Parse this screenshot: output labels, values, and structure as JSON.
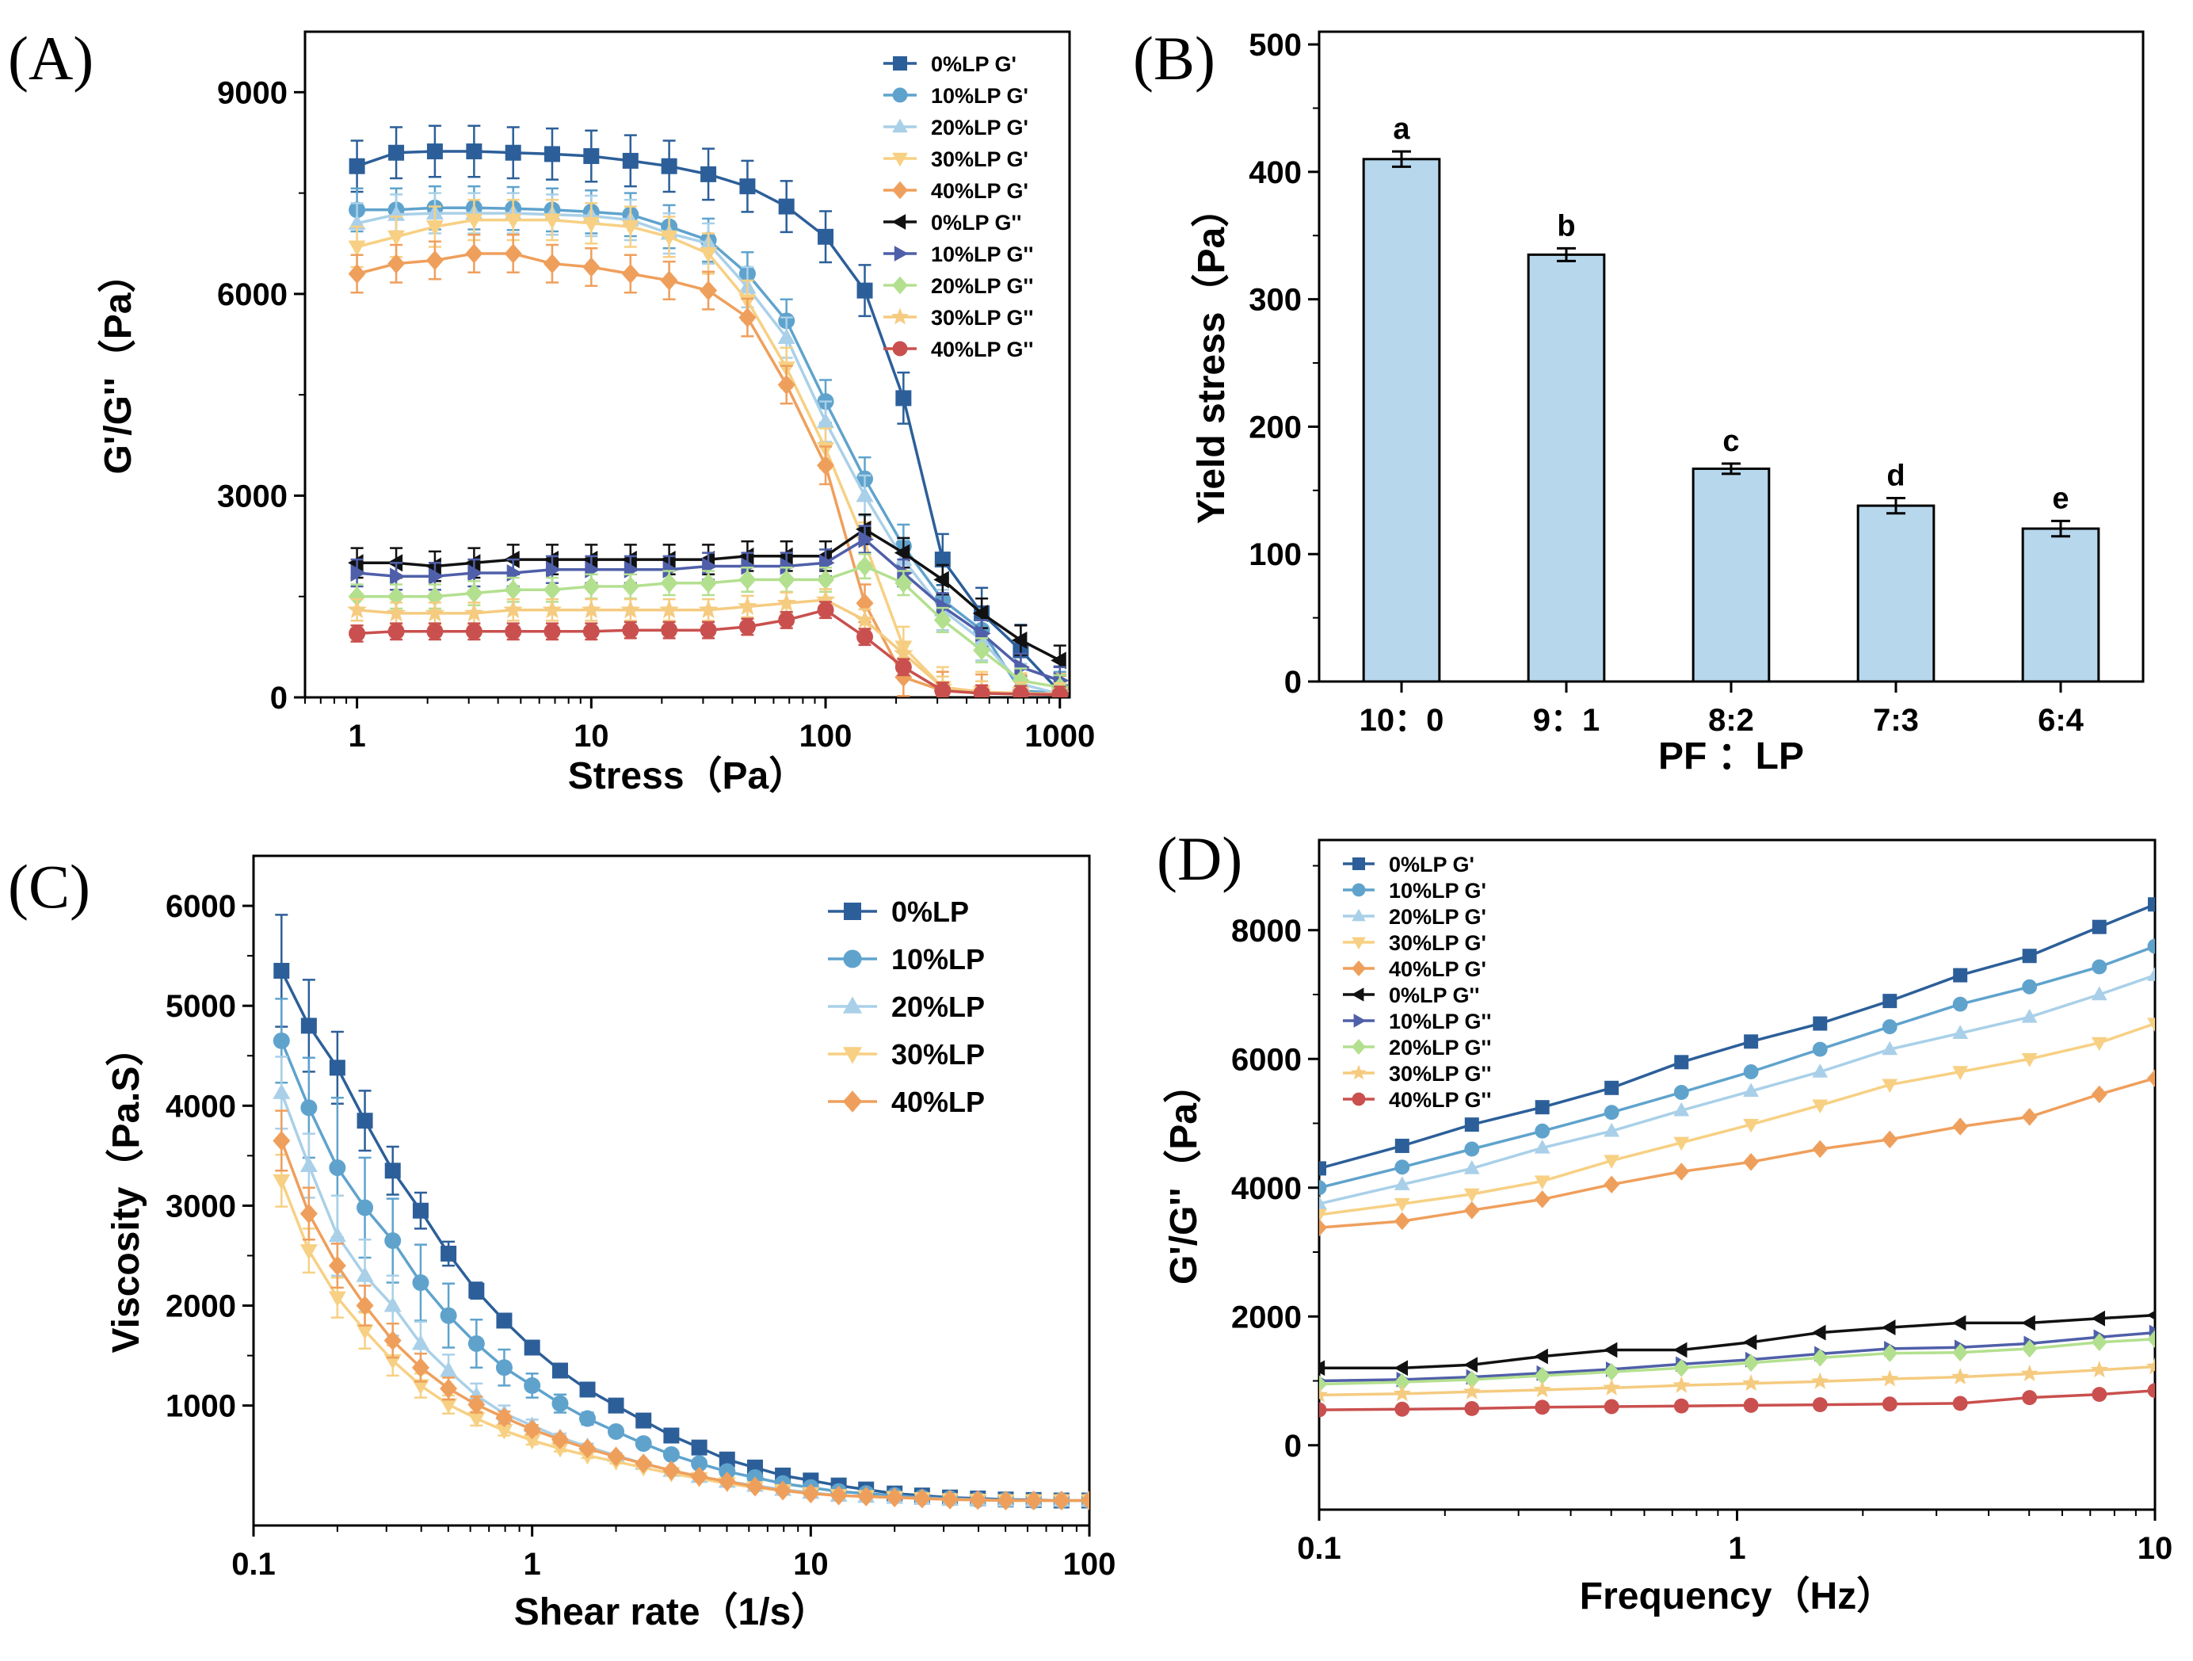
{
  "colors": {
    "p0": "#2C5F99",
    "p10": "#5FA3CD",
    "p20": "#A9D0E8",
    "p30": "#F7D083",
    "p40": "#EF9F5C",
    "g0": "#111111",
    "g10": "#4F5FA9",
    "g20": "#B3E08F",
    "g30": "#F5CB80",
    "g40": "#C9504E",
    "bar": "#B6D7EC"
  },
  "chart_data": [
    {
      "id": "A",
      "type": "line",
      "panel_label": "(A)",
      "xlabel": "Stress（Pa）",
      "ylabel": "G'/G''（Pa）",
      "xscale": "log",
      "xlim": [
        0.6,
        1100
      ],
      "ylim": [
        0,
        9900
      ],
      "xticks": [
        1,
        10,
        100,
        1000
      ],
      "xtick_labels": [
        "1",
        "10",
        "100",
        "1000"
      ],
      "yticks": [
        0,
        3000,
        6000,
        9000
      ],
      "ytick_labels": [
        "0",
        "3000",
        "6000",
        "9000"
      ],
      "x": [
        1,
        1.47,
        2.15,
        3.16,
        4.64,
        6.81,
        10,
        14.7,
        21.5,
        31.6,
        46.4,
        68.1,
        100,
        147,
        215,
        316,
        464,
        681,
        1000
      ],
      "series": [
        {
          "name": "0%LP G'",
          "color_key": "p0",
          "marker": "square",
          "err": 380,
          "values": [
            7900,
            8100,
            8120,
            8120,
            8100,
            8080,
            8050,
            7980,
            7900,
            7780,
            7600,
            7300,
            6850,
            6050,
            4450,
            2050,
            1250,
            700,
            80
          ]
        },
        {
          "name": "10%LP G'",
          "color_key": "p10",
          "marker": "circle",
          "err": 320,
          "values": [
            7250,
            7250,
            7280,
            7280,
            7270,
            7250,
            7220,
            7180,
            7000,
            6800,
            6300,
            5600,
            4400,
            3250,
            2250,
            1450,
            1000,
            100,
            60
          ]
        },
        {
          "name": "20%LP G'",
          "color_key": "p20",
          "marker": "triangle-up",
          "err": 300,
          "values": [
            7050,
            7180,
            7200,
            7200,
            7200,
            7180,
            7160,
            7100,
            6900,
            6750,
            6100,
            5350,
            4100,
            3000,
            2050,
            1300,
            850,
            200,
            50
          ]
        },
        {
          "name": "30%LP G'",
          "color_key": "p30",
          "marker": "triangle-down",
          "err": 300,
          "values": [
            6700,
            6850,
            7000,
            7100,
            7100,
            7100,
            7050,
            7000,
            6850,
            6600,
            5900,
            4900,
            3700,
            2300,
            750,
            150,
            80,
            60,
            50
          ]
        },
        {
          "name": "40%LP G'",
          "color_key": "p40",
          "marker": "diamond",
          "err": 280,
          "values": [
            6300,
            6450,
            6500,
            6600,
            6600,
            6450,
            6400,
            6300,
            6200,
            6050,
            5650,
            4650,
            3450,
            1400,
            300,
            100,
            60,
            50,
            40
          ]
        },
        {
          "name": "0%LP G''",
          "color_key": "g0",
          "marker": "triangle-left",
          "err": 220,
          "values": [
            2000,
            2000,
            1950,
            2000,
            2050,
            2050,
            2050,
            2050,
            2050,
            2050,
            2100,
            2100,
            2100,
            2500,
            2150,
            1750,
            1250,
            850,
            550
          ]
        },
        {
          "name": "10%LP G''",
          "color_key": "g10",
          "marker": "triangle-right",
          "err": 200,
          "values": [
            1850,
            1800,
            1800,
            1850,
            1850,
            1900,
            1900,
            1900,
            1900,
            1950,
            1950,
            1950,
            2000,
            2350,
            1850,
            1350,
            950,
            450,
            250
          ]
        },
        {
          "name": "20%LP G''",
          "color_key": "g20",
          "marker": "diamond",
          "err": 180,
          "values": [
            1500,
            1500,
            1500,
            1550,
            1600,
            1600,
            1650,
            1650,
            1700,
            1700,
            1750,
            1750,
            1750,
            1950,
            1700,
            1150,
            700,
            250,
            150
          ]
        },
        {
          "name": "30%LP G''",
          "color_key": "g30",
          "marker": "star",
          "err": 160,
          "values": [
            1300,
            1250,
            1250,
            1250,
            1300,
            1300,
            1300,
            1300,
            1300,
            1300,
            1350,
            1400,
            1450,
            1150,
            650,
            150,
            80,
            60,
            50
          ]
        },
        {
          "name": "40%LP G''",
          "color_key": "g40",
          "marker": "circle",
          "err": 120,
          "values": [
            950,
            980,
            980,
            980,
            980,
            980,
            980,
            1000,
            1000,
            1000,
            1050,
            1150,
            1300,
            900,
            450,
            100,
            60,
            50,
            40
          ]
        }
      ]
    },
    {
      "id": "B",
      "type": "bar",
      "panel_label": "(B)",
      "xlabel": "PF ：LP",
      "ylabel": "Yield stress（Pa）",
      "ylim": [
        0,
        510
      ],
      "yticks": [
        0,
        100,
        200,
        300,
        400,
        500
      ],
      "ytick_labels": [
        "0",
        "100",
        "200",
        "300",
        "400",
        "500"
      ],
      "categories": [
        "10：0",
        "9：1",
        "8:2",
        "7:3",
        "6:4"
      ],
      "values": [
        410,
        335,
        167,
        138,
        120
      ],
      "errors": [
        6,
        5,
        4,
        6,
        6
      ],
      "letters": [
        "a",
        "b",
        "c",
        "d",
        "e"
      ]
    },
    {
      "id": "C",
      "type": "line",
      "panel_label": "(C)",
      "xlabel": "Shear rate（1/s）",
      "ylabel": "Viscosity（Pa.S）",
      "xscale": "log",
      "xlim": [
        0.1,
        100
      ],
      "ylim": [
        -200,
        6500
      ],
      "xticks": [
        0.1,
        1,
        10,
        100
      ],
      "xtick_labels": [
        "0.1",
        "1",
        "10",
        "100"
      ],
      "yticks": [
        1000,
        2000,
        3000,
        4000,
        5000,
        6000
      ],
      "ytick_labels": [
        "1000",
        "2000",
        "3000",
        "4000",
        "5000",
        "6000"
      ],
      "x": [
        0.126,
        0.158,
        0.2,
        0.251,
        0.316,
        0.398,
        0.501,
        0.631,
        0.794,
        1.0,
        1.26,
        1.58,
        2.0,
        2.51,
        3.16,
        3.98,
        5.01,
        6.31,
        7.94,
        10,
        12.6,
        15.8,
        20,
        25.1,
        31.6,
        39.8,
        50.1,
        63.1,
        79.4,
        100
      ],
      "series": [
        {
          "name": "0%LP",
          "color_key": "p0",
          "marker": "square",
          "values": [
            5350,
            4800,
            4380,
            3850,
            3350,
            2950,
            2520,
            2150,
            1850,
            1580,
            1350,
            1160,
            1000,
            850,
            700,
            580,
            460,
            380,
            300,
            250,
            200,
            160,
            120,
            100,
            80,
            70,
            60,
            55,
            50,
            50
          ],
          "errors": [
            560,
            460,
            360,
            300,
            240,
            180,
            120,
            80,
            60,
            40,
            30,
            25,
            20,
            15,
            15,
            10,
            10,
            10,
            10,
            10,
            10,
            10,
            10,
            10,
            10,
            10,
            10,
            10,
            10,
            10
          ]
        },
        {
          "name": "10%LP",
          "color_key": "p10",
          "marker": "circle",
          "values": [
            4650,
            3980,
            3380,
            2980,
            2650,
            2230,
            1900,
            1620,
            1380,
            1200,
            1020,
            870,
            740,
            620,
            510,
            420,
            340,
            280,
            220,
            180,
            140,
            120,
            100,
            80,
            70,
            60,
            55,
            50,
            50,
            50
          ],
          "errors": [
            420,
            500,
            700,
            500,
            420,
            380,
            320,
            240,
            180,
            120,
            90,
            60,
            40,
            30,
            20,
            15,
            10,
            10,
            10,
            10,
            10,
            10,
            10,
            10,
            10,
            10,
            10,
            10,
            10,
            10
          ]
        },
        {
          "name": "20%LP",
          "color_key": "p20",
          "marker": "triangle-up",
          "values": [
            4130,
            3400,
            2700,
            2300,
            2000,
            1620,
            1350,
            1100,
            920,
            800,
            680,
            590,
            500,
            420,
            350,
            290,
            240,
            200,
            160,
            130,
            100,
            90,
            80,
            70,
            60,
            55,
            50,
            50,
            50,
            50
          ],
          "errors": [
            360,
            320,
            400,
            360,
            300,
            220,
            160,
            120,
            80,
            60,
            40,
            30,
            25,
            20,
            15,
            10,
            10,
            10,
            10,
            10,
            10,
            10,
            10,
            10,
            10,
            10,
            10,
            10,
            10,
            10
          ]
        },
        {
          "name": "30%LP",
          "color_key": "p30",
          "marker": "triangle-down",
          "values": [
            3250,
            2550,
            2080,
            1750,
            1450,
            1200,
            1010,
            870,
            750,
            650,
            570,
            500,
            440,
            380,
            320,
            270,
            220,
            180,
            150,
            120,
            100,
            90,
            80,
            70,
            60,
            55,
            50,
            50,
            50,
            50
          ],
          "errors": [
            260,
            220,
            200,
            180,
            150,
            120,
            90,
            70,
            50,
            40,
            30,
            25,
            20,
            15,
            15,
            10,
            10,
            10,
            10,
            10,
            10,
            10,
            10,
            10,
            10,
            10,
            10,
            10,
            10,
            10
          ]
        },
        {
          "name": "40%LP",
          "color_key": "p40",
          "marker": "diamond",
          "values": [
            3650,
            2920,
            2400,
            2000,
            1650,
            1380,
            1170,
            1010,
            880,
            760,
            660,
            570,
            490,
            420,
            350,
            290,
            240,
            190,
            150,
            120,
            100,
            90,
            80,
            70,
            60,
            55,
            50,
            50,
            50,
            50
          ],
          "errors": [
            300,
            260,
            220,
            200,
            170,
            140,
            110,
            80,
            60,
            45,
            35,
            25,
            20,
            15,
            15,
            10,
            10,
            10,
            10,
            10,
            10,
            10,
            10,
            10,
            10,
            10,
            10,
            10,
            10,
            10
          ]
        }
      ]
    },
    {
      "id": "D",
      "type": "line",
      "panel_label": "(D)",
      "xlabel": "Frequency（Hz）",
      "ylabel": "G'/G''（Pa）",
      "xscale": "log",
      "xlim": [
        0.1,
        10
      ],
      "ylim": [
        -1000,
        9400
      ],
      "xticks": [
        0.1,
        1,
        10
      ],
      "xtick_labels": [
        "0.1",
        "1",
        "10"
      ],
      "yticks": [
        0,
        2000,
        4000,
        6000,
        8000
      ],
      "ytick_labels": [
        "0",
        "2000",
        "4000",
        "6000",
        "8000"
      ],
      "x": [
        0.1,
        0.158,
        0.232,
        0.342,
        0.501,
        0.736,
        1.08,
        1.58,
        2.32,
        3.42,
        5.01,
        7.36,
        10
      ],
      "series": [
        {
          "name": "0%LP G'",
          "color_key": "p0",
          "marker": "square",
          "values": [
            4300,
            4650,
            4980,
            5250,
            5550,
            5950,
            6270,
            6550,
            6900,
            7300,
            7600,
            8050,
            8400
          ]
        },
        {
          "name": "10%LP G'",
          "color_key": "p10",
          "marker": "circle",
          "values": [
            4000,
            4320,
            4600,
            4880,
            5170,
            5480,
            5800,
            6150,
            6500,
            6850,
            7120,
            7430,
            7750
          ]
        },
        {
          "name": "20%LP G'",
          "color_key": "p20",
          "marker": "triangle-up",
          "values": [
            3750,
            4050,
            4300,
            4620,
            4880,
            5200,
            5500,
            5800,
            6150,
            6400,
            6650,
            7000,
            7300
          ]
        },
        {
          "name": "30%LP G'",
          "color_key": "p30",
          "marker": "triangle-down",
          "values": [
            3580,
            3750,
            3900,
            4100,
            4420,
            4700,
            4980,
            5280,
            5600,
            5800,
            6000,
            6250,
            6550
          ]
        },
        {
          "name": "40%LP G'",
          "color_key": "p40",
          "marker": "diamond",
          "values": [
            3380,
            3480,
            3650,
            3820,
            4050,
            4250,
            4400,
            4600,
            4750,
            4950,
            5100,
            5450,
            5700
          ]
        },
        {
          "name": "0%LP G''",
          "color_key": "g0",
          "marker": "triangle-left",
          "values": [
            1200,
            1200,
            1250,
            1380,
            1480,
            1480,
            1600,
            1750,
            1830,
            1900,
            1900,
            1970,
            2020
          ]
        },
        {
          "name": "10%LP G''",
          "color_key": "g10",
          "marker": "triangle-right",
          "values": [
            1000,
            1020,
            1060,
            1120,
            1180,
            1260,
            1330,
            1420,
            1500,
            1520,
            1580,
            1680,
            1750
          ]
        },
        {
          "name": "20%LP G''",
          "color_key": "g20",
          "marker": "diamond",
          "values": [
            950,
            980,
            1020,
            1080,
            1140,
            1200,
            1280,
            1360,
            1430,
            1440,
            1500,
            1600,
            1650
          ]
        },
        {
          "name": "30%LP G''",
          "color_key": "g30",
          "marker": "star",
          "values": [
            780,
            800,
            830,
            860,
            890,
            930,
            960,
            990,
            1030,
            1060,
            1110,
            1170,
            1220
          ]
        },
        {
          "name": "40%LP G''",
          "color_key": "g40",
          "marker": "circle",
          "values": [
            550,
            560,
            570,
            590,
            600,
            610,
            620,
            630,
            640,
            650,
            740,
            790,
            850
          ]
        }
      ]
    }
  ]
}
